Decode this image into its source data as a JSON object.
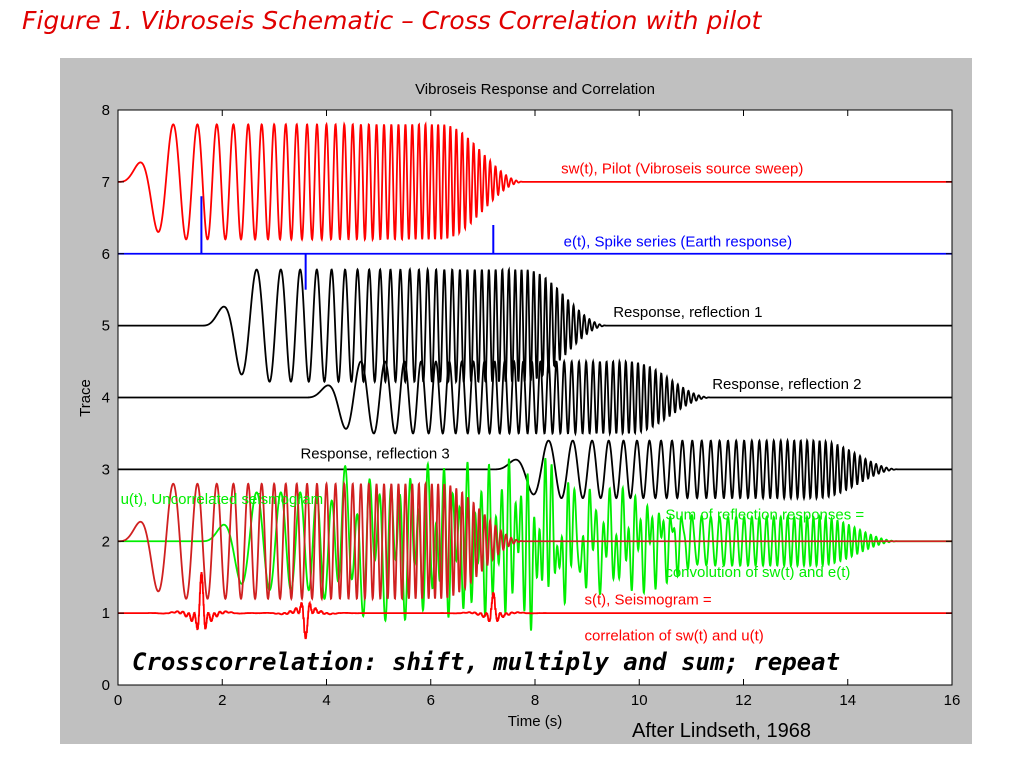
{
  "figure_title": "Figure 1.  Vibroseis Schematic – Cross Correlation with pilot",
  "credit": "After Lindseth, 1968",
  "chart_data": {
    "type": "line",
    "title": "Vibroseis Response and Correlation",
    "xlabel": "Time (s)",
    "ylabel": "Trace",
    "xlim": [
      0,
      16
    ],
    "ylim": [
      0,
      8
    ],
    "xticks": [
      0,
      2,
      4,
      6,
      8,
      10,
      12,
      14,
      16
    ],
    "yticks": [
      0,
      1,
      2,
      3,
      4,
      5,
      6,
      7,
      8
    ],
    "grid": false,
    "colors": {
      "pilot": "#ff0000",
      "earth": "#0000ff",
      "response": "#000000",
      "uncorrelated": "#00ee00",
      "seismogram": "#ff0000"
    },
    "series": [
      {
        "name": "sw(t), Pilot (Vibroseis source sweep)",
        "kind": "sweep",
        "baseline": 7,
        "start": 0,
        "duration": 7.8,
        "amplitude": 0.8,
        "color": "#ff0000"
      },
      {
        "name": "e(t), Spike series (Earth response)",
        "kind": "spikes",
        "baseline": 6,
        "color": "#0000ff",
        "spikes": [
          {
            "t": 1.6,
            "a": 0.8
          },
          {
            "t": 3.6,
            "a": -0.5
          },
          {
            "t": 7.2,
            "a": 0.4
          }
        ]
      },
      {
        "name": "Response, reflection 1",
        "kind": "sweep",
        "baseline": 5,
        "start": 1.6,
        "duration": 7.8,
        "amplitude": 0.78,
        "color": "#000000"
      },
      {
        "name": "Response, reflection 2",
        "kind": "sweep",
        "baseline": 4,
        "start": 3.6,
        "duration": 7.8,
        "amplitude": 0.5,
        "color": "#000000"
      },
      {
        "name": "Response, reflection 3",
        "kind": "sweep",
        "baseline": 3,
        "start": 7.2,
        "duration": 7.8,
        "amplitude": 0.4,
        "color": "#000000"
      },
      {
        "name": "u(t), Uncorrelated seismogram",
        "kind": "sum",
        "baseline": 2,
        "color": "#00ee00"
      },
      {
        "name": "s(t), Seismogram",
        "kind": "correlation",
        "baseline": 1,
        "color": "#ff0000"
      },
      {
        "name": "shifted pilot (overlay)",
        "kind": "sweep",
        "baseline": 2,
        "start": 0,
        "duration": 7.8,
        "amplitude": 0.8,
        "color": "#d02020"
      }
    ],
    "annotations": [
      {
        "text": "sw(t), Pilot (Vibroseis source sweep)",
        "x": 8.5,
        "y": 7.12,
        "color": "#ff0000",
        "anchor": "start"
      },
      {
        "text": "e(t), Spike series (Earth response)",
        "x": 8.55,
        "y": 6.1,
        "color": "#0000ff",
        "anchor": "start"
      },
      {
        "text": "Response, reflection 1",
        "x": 9.5,
        "y": 5.12,
        "color": "#000000",
        "anchor": "start"
      },
      {
        "text": "Response, reflection 2",
        "x": 11.4,
        "y": 4.12,
        "color": "#000000",
        "anchor": "start"
      },
      {
        "text": "Response, reflection 3",
        "x": 3.5,
        "y": 3.15,
        "color": "#000000",
        "anchor": "start"
      },
      {
        "text": "u(t), Uncorrelated seismogram",
        "x": 0.05,
        "y": 2.52,
        "color": "#00ee00",
        "anchor": "start"
      },
      {
        "text": "Sum of reflection responses =",
        "x": 10.5,
        "y": 2.3,
        "color": "#00ee00",
        "anchor": "start"
      },
      {
        "text": "convolution of sw(t) and e(t)",
        "x": 10.5,
        "y": 1.5,
        "color": "#00ee00",
        "anchor": "start"
      },
      {
        "text": "s(t), Seismogram =",
        "x": 8.95,
        "y": 1.12,
        "color": "#ff0000",
        "anchor": "start"
      },
      {
        "text": "correlation of sw(t) and u(t)",
        "x": 8.95,
        "y": 0.62,
        "color": "#ff0000",
        "anchor": "start"
      }
    ],
    "overlay_text": "Crosscorrelation: shift, multiply and sum; repeat"
  }
}
